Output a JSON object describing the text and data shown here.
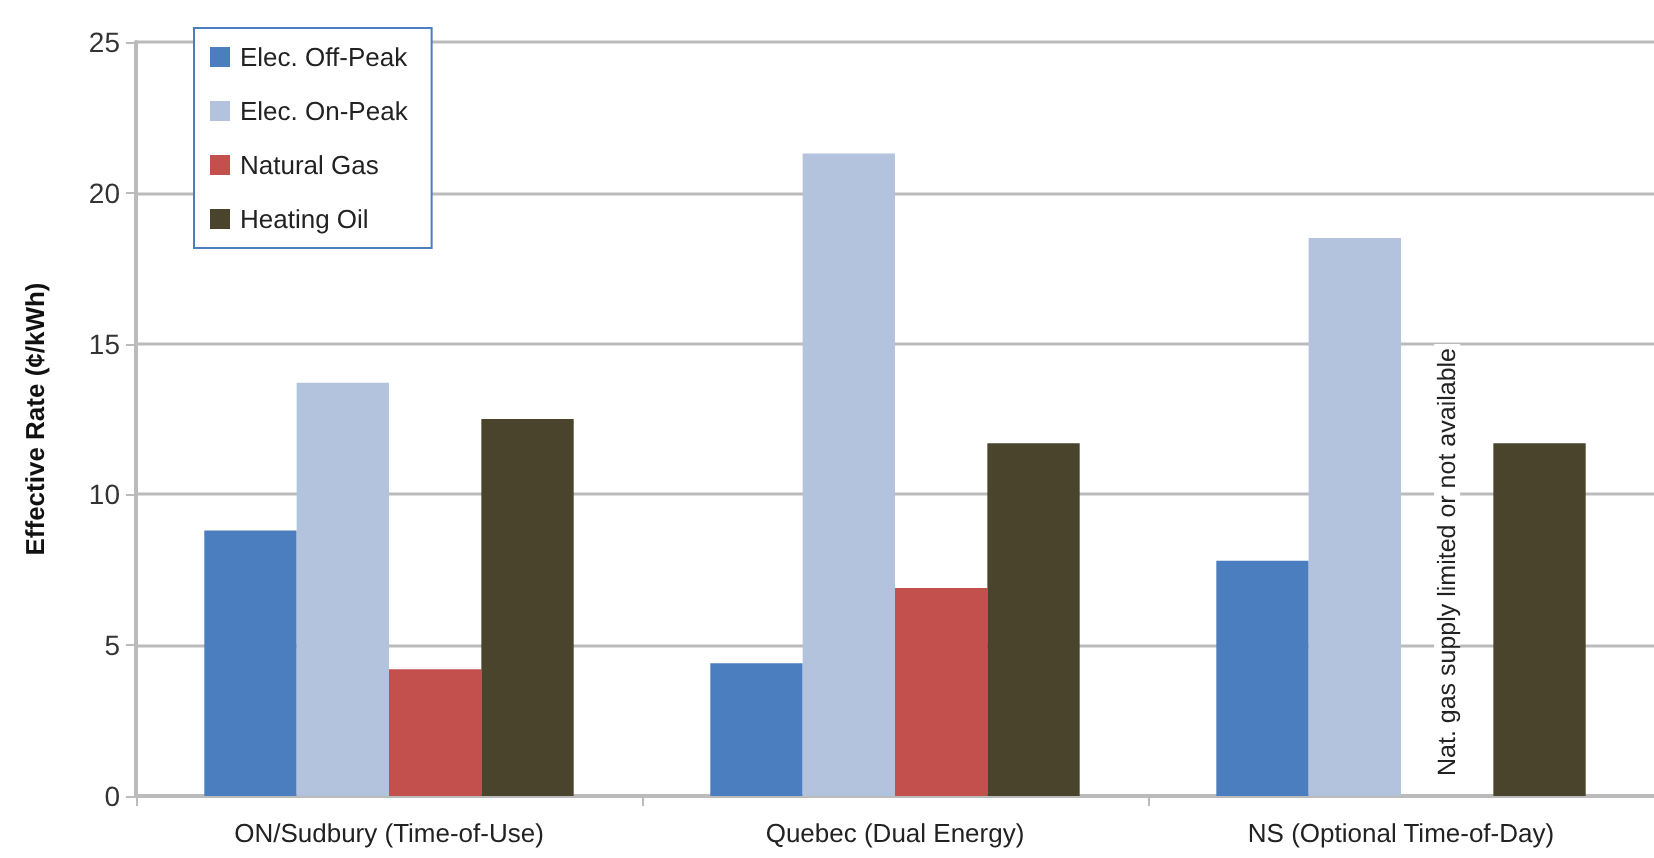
{
  "chart_data": {
    "type": "bar",
    "ylabel": "Effective Rate (¢/kWh)",
    "categories": [
      "ON/Sudbury (Time-of-Use)",
      "Quebec (Dual Energy)",
      "NS (Optional Time-of-Day)"
    ],
    "series": [
      {
        "name": "Elec. Off-Peak",
        "color": "#4a7ebf",
        "values": [
          8.8,
          4.4,
          7.8
        ]
      },
      {
        "name": "Elec. On-Peak",
        "color": "#b3c3de",
        "values": [
          13.7,
          21.3,
          18.5
        ]
      },
      {
        "name": "Natural Gas",
        "color": "#c4504e",
        "values": [
          4.2,
          6.9,
          null
        ]
      },
      {
        "name": "Heating Oil",
        "color": "#4a442c",
        "values": [
          12.5,
          11.7,
          11.7
        ]
      }
    ],
    "ylim": [
      0,
      25
    ],
    "yticks": [
      0,
      5,
      10,
      15,
      20,
      25
    ],
    "grid": "y",
    "legend": "top left",
    "annotations": [
      {
        "text": "Nat. gas supply limited or not available",
        "x": "NS (Optional Time-of-Day)",
        "y": 0
      }
    ]
  }
}
